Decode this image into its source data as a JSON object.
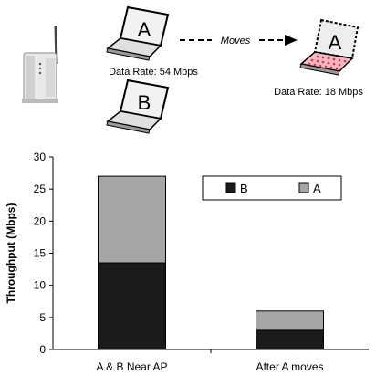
{
  "diagram": {
    "laptop_a_letter": "A",
    "laptop_b_letter": "B",
    "moved_laptop_letter": "A",
    "arrow_label": "Moves",
    "rate_a_before": "Data Rate: 54 Mbps",
    "rate_a_after": "Data Rate: 18 Mbps"
  },
  "chart_data": {
    "type": "bar",
    "stacked": true,
    "categories": [
      "A & B Near AP",
      "After A moves"
    ],
    "series": [
      {
        "name": "B",
        "values": [
          13.5,
          3
        ],
        "color": "#1a1a1a"
      },
      {
        "name": "A",
        "values": [
          13.5,
          3
        ],
        "color": "#a6a6a6"
      }
    ],
    "xlabel": "",
    "ylabel": "Throughput (Mbps)",
    "ylim": [
      0,
      30
    ],
    "yticks": [
      0,
      5,
      10,
      15,
      20,
      25,
      30
    ],
    "grid": false,
    "legend": "top-right"
  }
}
